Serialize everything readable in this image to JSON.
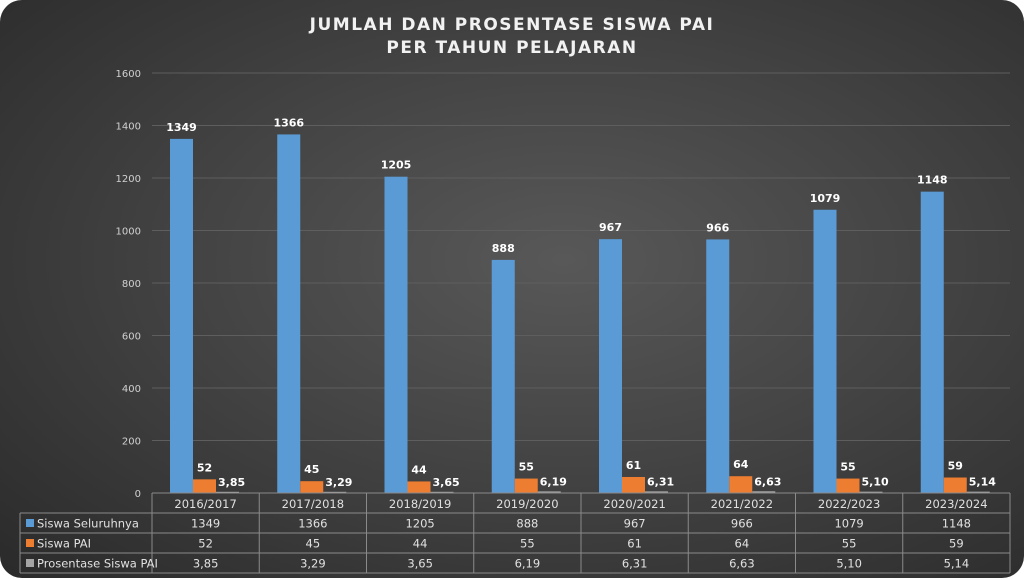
{
  "chart_data": {
    "type": "bar",
    "title_lines": [
      "JUMLAH DAN PROSENTASE SISWA PAI",
      "PER TAHUN PELAJARAN"
    ],
    "categories": [
      "2016/2017",
      "2017/2018",
      "2018/2019",
      "2019/2020",
      "2020/2021",
      "2021/2022",
      "2022/2023",
      "2023/2024"
    ],
    "series": [
      {
        "name": "Siswa Seluruhnya",
        "color": "#5b9bd5",
        "values": [
          1349,
          1366,
          1205,
          888,
          967,
          966,
          1079,
          1148
        ],
        "labels": [
          "1349",
          "1366",
          "1205",
          "888",
          "967",
          "966",
          "1079",
          "1148"
        ]
      },
      {
        "name": "Siswa PAI",
        "color": "#ed7d31",
        "values": [
          52,
          45,
          44,
          55,
          61,
          64,
          55,
          59
        ],
        "labels": [
          "52",
          "45",
          "44",
          "55",
          "61",
          "64",
          "55",
          "59"
        ]
      },
      {
        "name": "Prosentase Siswa PAI",
        "color": "#a5a5a5",
        "values": [
          3.85,
          3.29,
          3.65,
          6.19,
          6.31,
          6.63,
          5.1,
          5.14
        ],
        "labels": [
          "3,85",
          "3,29",
          "3,65",
          "6,19",
          "6,31",
          "6,63",
          "5,10",
          "5,14"
        ]
      }
    ],
    "ylim": [
      0,
      1600
    ],
    "yticks": [
      0,
      200,
      400,
      600,
      800,
      1000,
      1200,
      1400,
      1600
    ],
    "grid": true,
    "legend": "data-table"
  }
}
